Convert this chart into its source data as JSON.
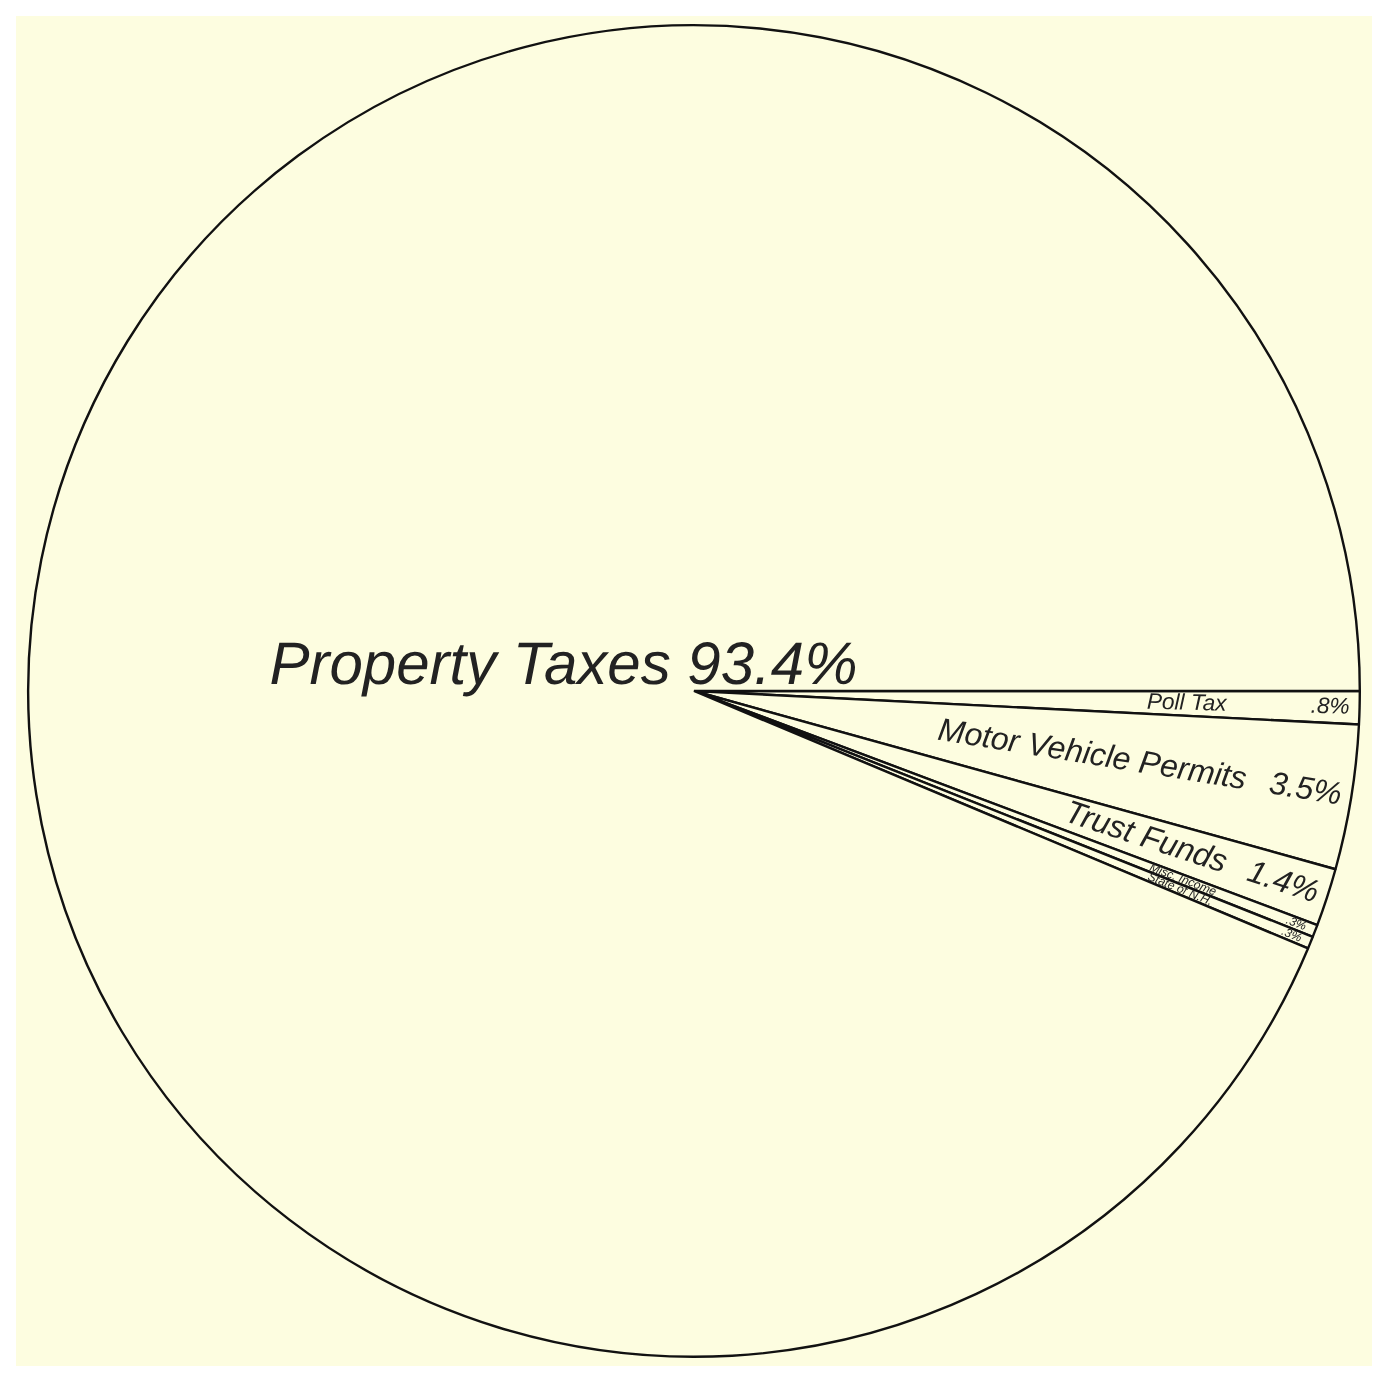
{
  "chart_data": {
    "type": "pie",
    "categories": [
      "Poll Tax",
      "Motor Vehicle Permits",
      "Trust Funds",
      "Misc. Income",
      "State of N.H.",
      "Property Taxes"
    ],
    "values": [
      0.8,
      3.5,
      1.4,
      0.3,
      0.3,
      93.4
    ],
    "colors": [
      "#fdfde0",
      "#fdfde0",
      "#fdfde0",
      "#fdfde0",
      "#fdfde0",
      "#fdfde0"
    ],
    "value_labels": [
      ".8%",
      "3.5%",
      "1.4%",
      ".3%",
      ".3%",
      "93.4%"
    ],
    "legend": false
  }
}
